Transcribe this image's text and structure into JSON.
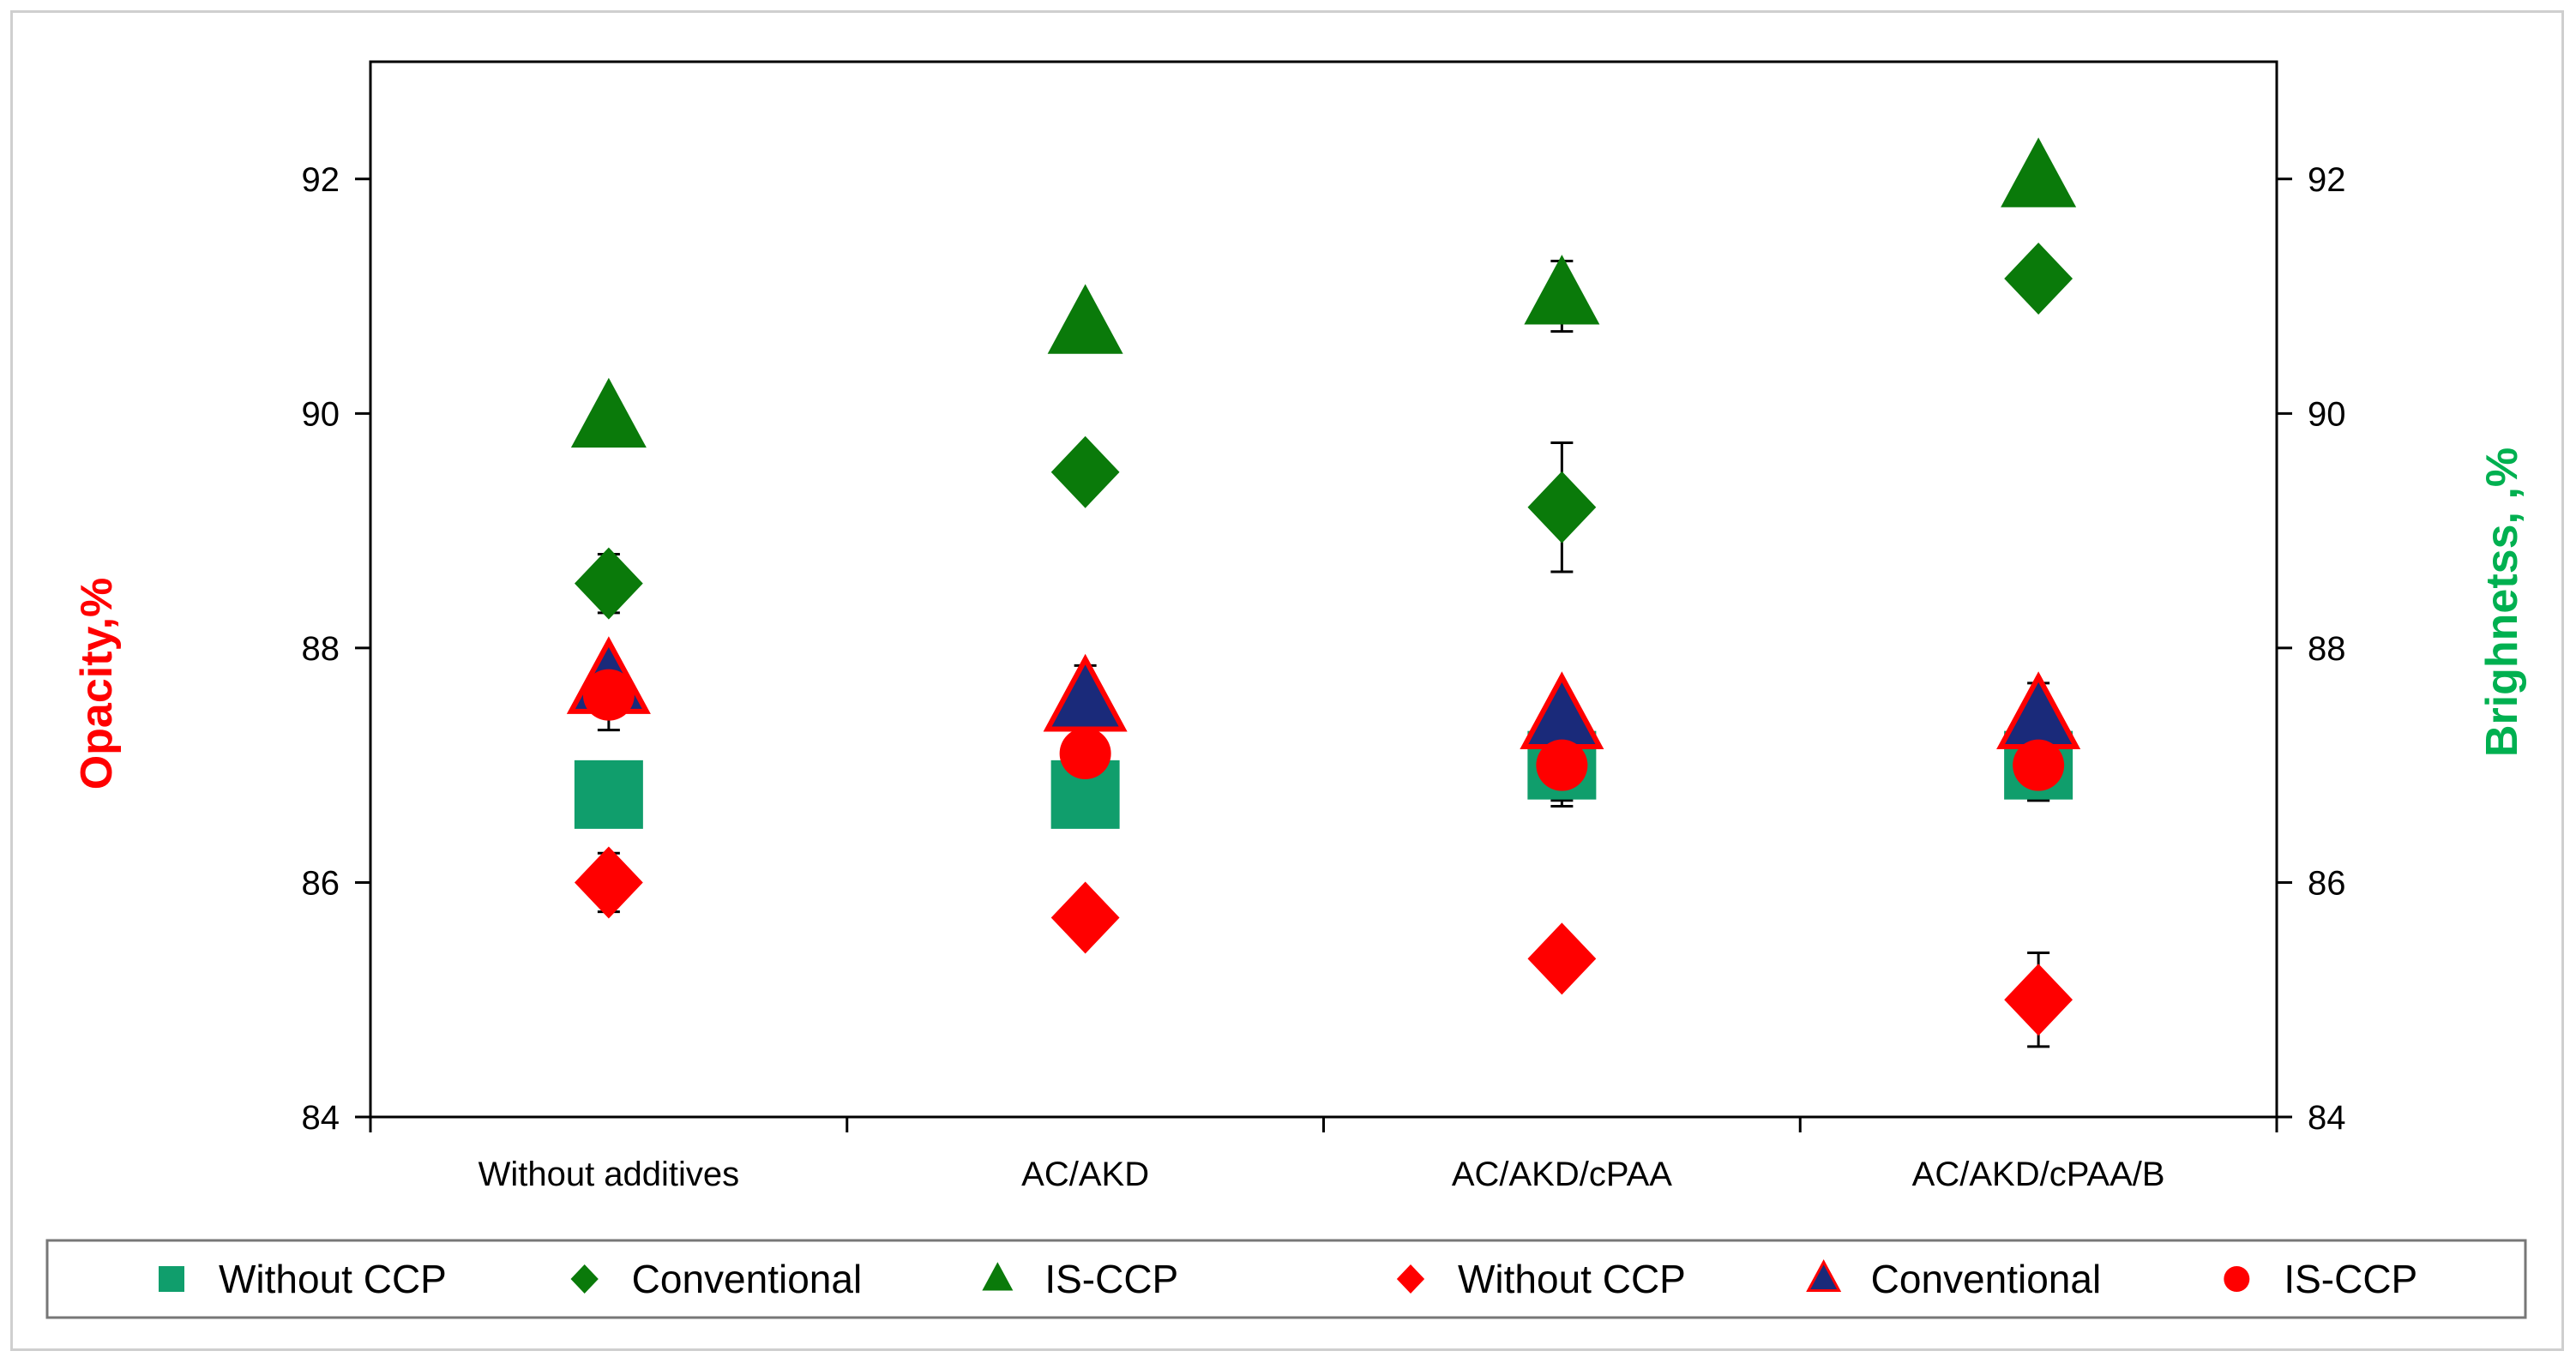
{
  "chart_data": {
    "type": "scatter",
    "title": "",
    "categories": [
      "Without additives",
      "AC/AKD",
      "AC/AKD/cPAA",
      "AC/AKD/cPAA/B"
    ],
    "y_left": {
      "label": "Opacity,%",
      "min": 84,
      "max": 93,
      "ticks": [
        84,
        86,
        88,
        90,
        92
      ],
      "color": "#ff0000"
    },
    "y_right": {
      "label": "Brighnetss, ,%",
      "min": 84,
      "max": 93,
      "ticks": [
        84,
        86,
        88,
        90,
        92
      ],
      "color": "#00b050"
    },
    "grid": false,
    "legend_position": "bottom",
    "series": [
      {
        "name": "Without CCP",
        "marker": "square",
        "color": "#109e6c",
        "axis": "right",
        "values": [
          86.75,
          86.75,
          87.0,
          87.0
        ],
        "errors": [
          0.2,
          0.2,
          0.35,
          0.3
        ]
      },
      {
        "name": "Conventional",
        "marker": "diamond",
        "color": "#0a7a0a",
        "axis": "right",
        "values": [
          88.55,
          89.5,
          89.2,
          91.15
        ],
        "errors": [
          0.25,
          0.1,
          0.55,
          0.1
        ]
      },
      {
        "name": "IS-CCP",
        "marker": "triangle",
        "color": "#0a7a0a",
        "axis": "right",
        "values": [
          89.95,
          90.75,
          91.0,
          92.0
        ],
        "errors": [
          0.1,
          0.1,
          0.3,
          0.1
        ]
      },
      {
        "name": "Without CCP",
        "marker": "diamond",
        "color": "#ff0000",
        "axis": "left",
        "values": [
          86.0,
          85.7,
          85.35,
          85.0
        ],
        "errors": [
          0.25,
          0.1,
          0.1,
          0.4
        ]
      },
      {
        "name": "Conventional",
        "marker": "triangle",
        "color": "#1a2a7a",
        "stroke": "#ff0000",
        "axis": "left",
        "values": [
          87.7,
          87.55,
          87.4,
          87.4
        ],
        "errors": [
          0.2,
          0.3,
          0.2,
          0.3
        ]
      },
      {
        "name": "IS-CCP",
        "marker": "circle",
        "color": "#ff0000",
        "axis": "left",
        "values": [
          87.6,
          87.1,
          87.0,
          87.0
        ],
        "errors": [
          0.3,
          0.1,
          0.3,
          0.3
        ]
      }
    ]
  }
}
